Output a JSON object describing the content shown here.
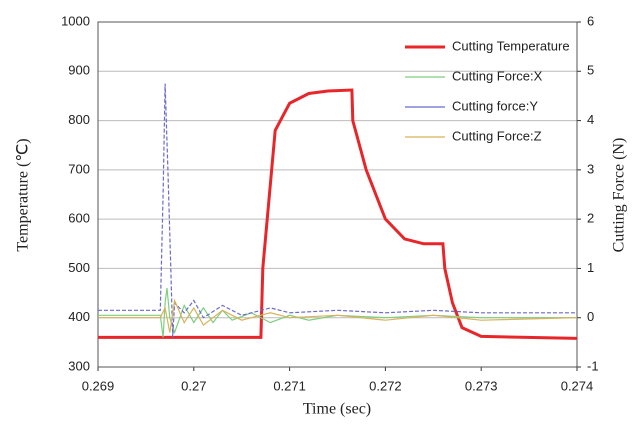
{
  "chart_data": {
    "type": "line",
    "xlabel": "Time (sec)",
    "ylabel": "Temperature (℃)",
    "y2label": "Cutting Force (N)",
    "xlim": [
      0.269,
      0.274
    ],
    "xticks": [
      0.269,
      0.27,
      0.271,
      0.272,
      0.273,
      0.274
    ],
    "ylim": [
      300,
      1000
    ],
    "yticks": [
      300,
      400,
      500,
      600,
      700,
      800,
      900,
      1000
    ],
    "y2lim": [
      -1,
      6
    ],
    "y2ticks": [
      -1,
      0,
      1,
      2,
      3,
      4,
      5,
      6
    ],
    "grid": true,
    "legend": "upper right",
    "series": [
      {
        "name": "Cutting Temperature",
        "color": "#e8262a",
        "x": [
          0.269,
          0.2707,
          0.27072,
          0.27085,
          0.271,
          0.2712,
          0.2714,
          0.27165,
          0.27166,
          0.2718,
          0.272,
          0.2722,
          0.2724,
          0.2726,
          0.27262,
          0.2727,
          0.2728,
          0.273,
          0.274
        ],
        "values": [
          360,
          360,
          500,
          780,
          835,
          855,
          860,
          862,
          800,
          700,
          600,
          560,
          550,
          550,
          500,
          430,
          380,
          362,
          358
        ]
      },
      {
        "name": "Cutting Force:X",
        "color": "#7fcf7f",
        "axis": "y2",
        "x": [
          0.269,
          0.26965,
          0.26968,
          0.2697,
          0.26972,
          0.26975,
          0.2698,
          0.2699,
          0.27,
          0.2701,
          0.2702,
          0.2703,
          0.2704,
          0.2706,
          0.2708,
          0.271,
          0.2712,
          0.2715,
          0.272,
          0.2725,
          0.273,
          0.274
        ],
        "values": [
          0.05,
          0.05,
          -0.4,
          0.3,
          0.6,
          0,
          -0.3,
          0.25,
          -0.1,
          0.2,
          -0.1,
          0.15,
          -0.05,
          0.1,
          -0.1,
          0.05,
          -0.05,
          0.05,
          0,
          0.05,
          0,
          0
        ]
      },
      {
        "name": "Cutting force:Y",
        "color": "#6a6ad0",
        "axis": "y2",
        "x": [
          0.269,
          0.26965,
          0.26968,
          0.2697,
          0.26973,
          0.26976,
          0.26978,
          0.2698,
          0.2699,
          0.27,
          0.2701,
          0.2703,
          0.2705,
          0.2708,
          0.271,
          0.2715,
          0.272,
          0.2725,
          0.273,
          0.274
        ],
        "values": [
          0.15,
          0.15,
          2.5,
          4.75,
          3,
          1,
          -0.4,
          0.3,
          0.1,
          0.35,
          0,
          0.25,
          0.05,
          0.2,
          0.1,
          0.15,
          0.1,
          0.15,
          0.1,
          0.1
        ]
      },
      {
        "name": "Cutting Force:Z",
        "color": "#d9b25a",
        "axis": "y2",
        "x": [
          0.269,
          0.26965,
          0.2697,
          0.26975,
          0.2698,
          0.2699,
          0.27,
          0.2701,
          0.2703,
          0.2705,
          0.2708,
          0.271,
          0.2715,
          0.272,
          0.2725,
          0.273,
          0.274
        ],
        "values": [
          0,
          0,
          0.2,
          -0.3,
          0.35,
          -0.1,
          0.2,
          -0.15,
          0.15,
          -0.05,
          0.1,
          0,
          0.05,
          -0.05,
          0.05,
          -0.05,
          0
        ]
      }
    ]
  }
}
